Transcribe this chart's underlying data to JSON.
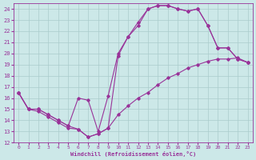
{
  "xlabel": "Windchill (Refroidissement éolien,°C)",
  "bg_color": "#cce8e8",
  "grid_color": "#aacccc",
  "line_color": "#993399",
  "xlim": [
    -0.5,
    23.5
  ],
  "ylim": [
    12,
    24.5
  ],
  "yticks": [
    12,
    13,
    14,
    15,
    16,
    17,
    18,
    19,
    20,
    21,
    22,
    23,
    24
  ],
  "xticks": [
    0,
    1,
    2,
    3,
    4,
    5,
    6,
    7,
    8,
    9,
    10,
    11,
    12,
    13,
    14,
    15,
    16,
    17,
    18,
    19,
    20,
    21,
    22,
    23
  ],
  "line1_x": [
    0,
    1,
    2,
    3,
    4,
    5,
    6,
    7,
    8,
    9,
    10,
    11,
    12,
    13,
    14,
    15,
    16,
    17,
    18,
    19,
    20,
    21,
    22,
    23
  ],
  "line1_y": [
    16.5,
    15.0,
    14.8,
    14.3,
    13.8,
    13.3,
    13.2,
    12.5,
    12.8,
    13.3,
    14.5,
    15.3,
    16.0,
    16.5,
    17.2,
    17.8,
    18.2,
    18.7,
    19.0,
    19.3,
    19.5,
    19.5,
    19.6,
    19.2
  ],
  "line2_x": [
    0,
    1,
    2,
    3,
    4,
    5,
    6,
    7,
    8,
    9,
    10,
    11,
    12,
    13,
    14,
    15,
    16,
    17,
    18,
    19,
    20,
    21,
    22,
    23
  ],
  "line2_y": [
    16.5,
    15.0,
    15.0,
    14.5,
    14.0,
    13.5,
    16.0,
    15.8,
    13.0,
    16.2,
    20.0,
    21.5,
    22.8,
    24.0,
    24.3,
    24.3,
    24.0,
    23.8,
    24.0,
    22.5,
    20.5,
    20.5,
    19.5,
    19.2
  ],
  "line3_x": [
    0,
    1,
    2,
    3,
    4,
    5,
    6,
    7,
    8,
    9,
    10,
    11,
    12,
    13,
    14,
    15,
    16,
    17,
    18,
    19,
    20,
    21,
    22,
    23
  ],
  "line3_y": [
    16.5,
    15.0,
    15.0,
    14.5,
    14.0,
    13.5,
    13.2,
    12.5,
    12.8,
    13.3,
    19.8,
    21.5,
    22.5,
    24.0,
    24.3,
    24.3,
    24.0,
    23.8,
    24.0,
    22.5,
    20.5,
    20.5,
    19.5,
    19.2
  ]
}
